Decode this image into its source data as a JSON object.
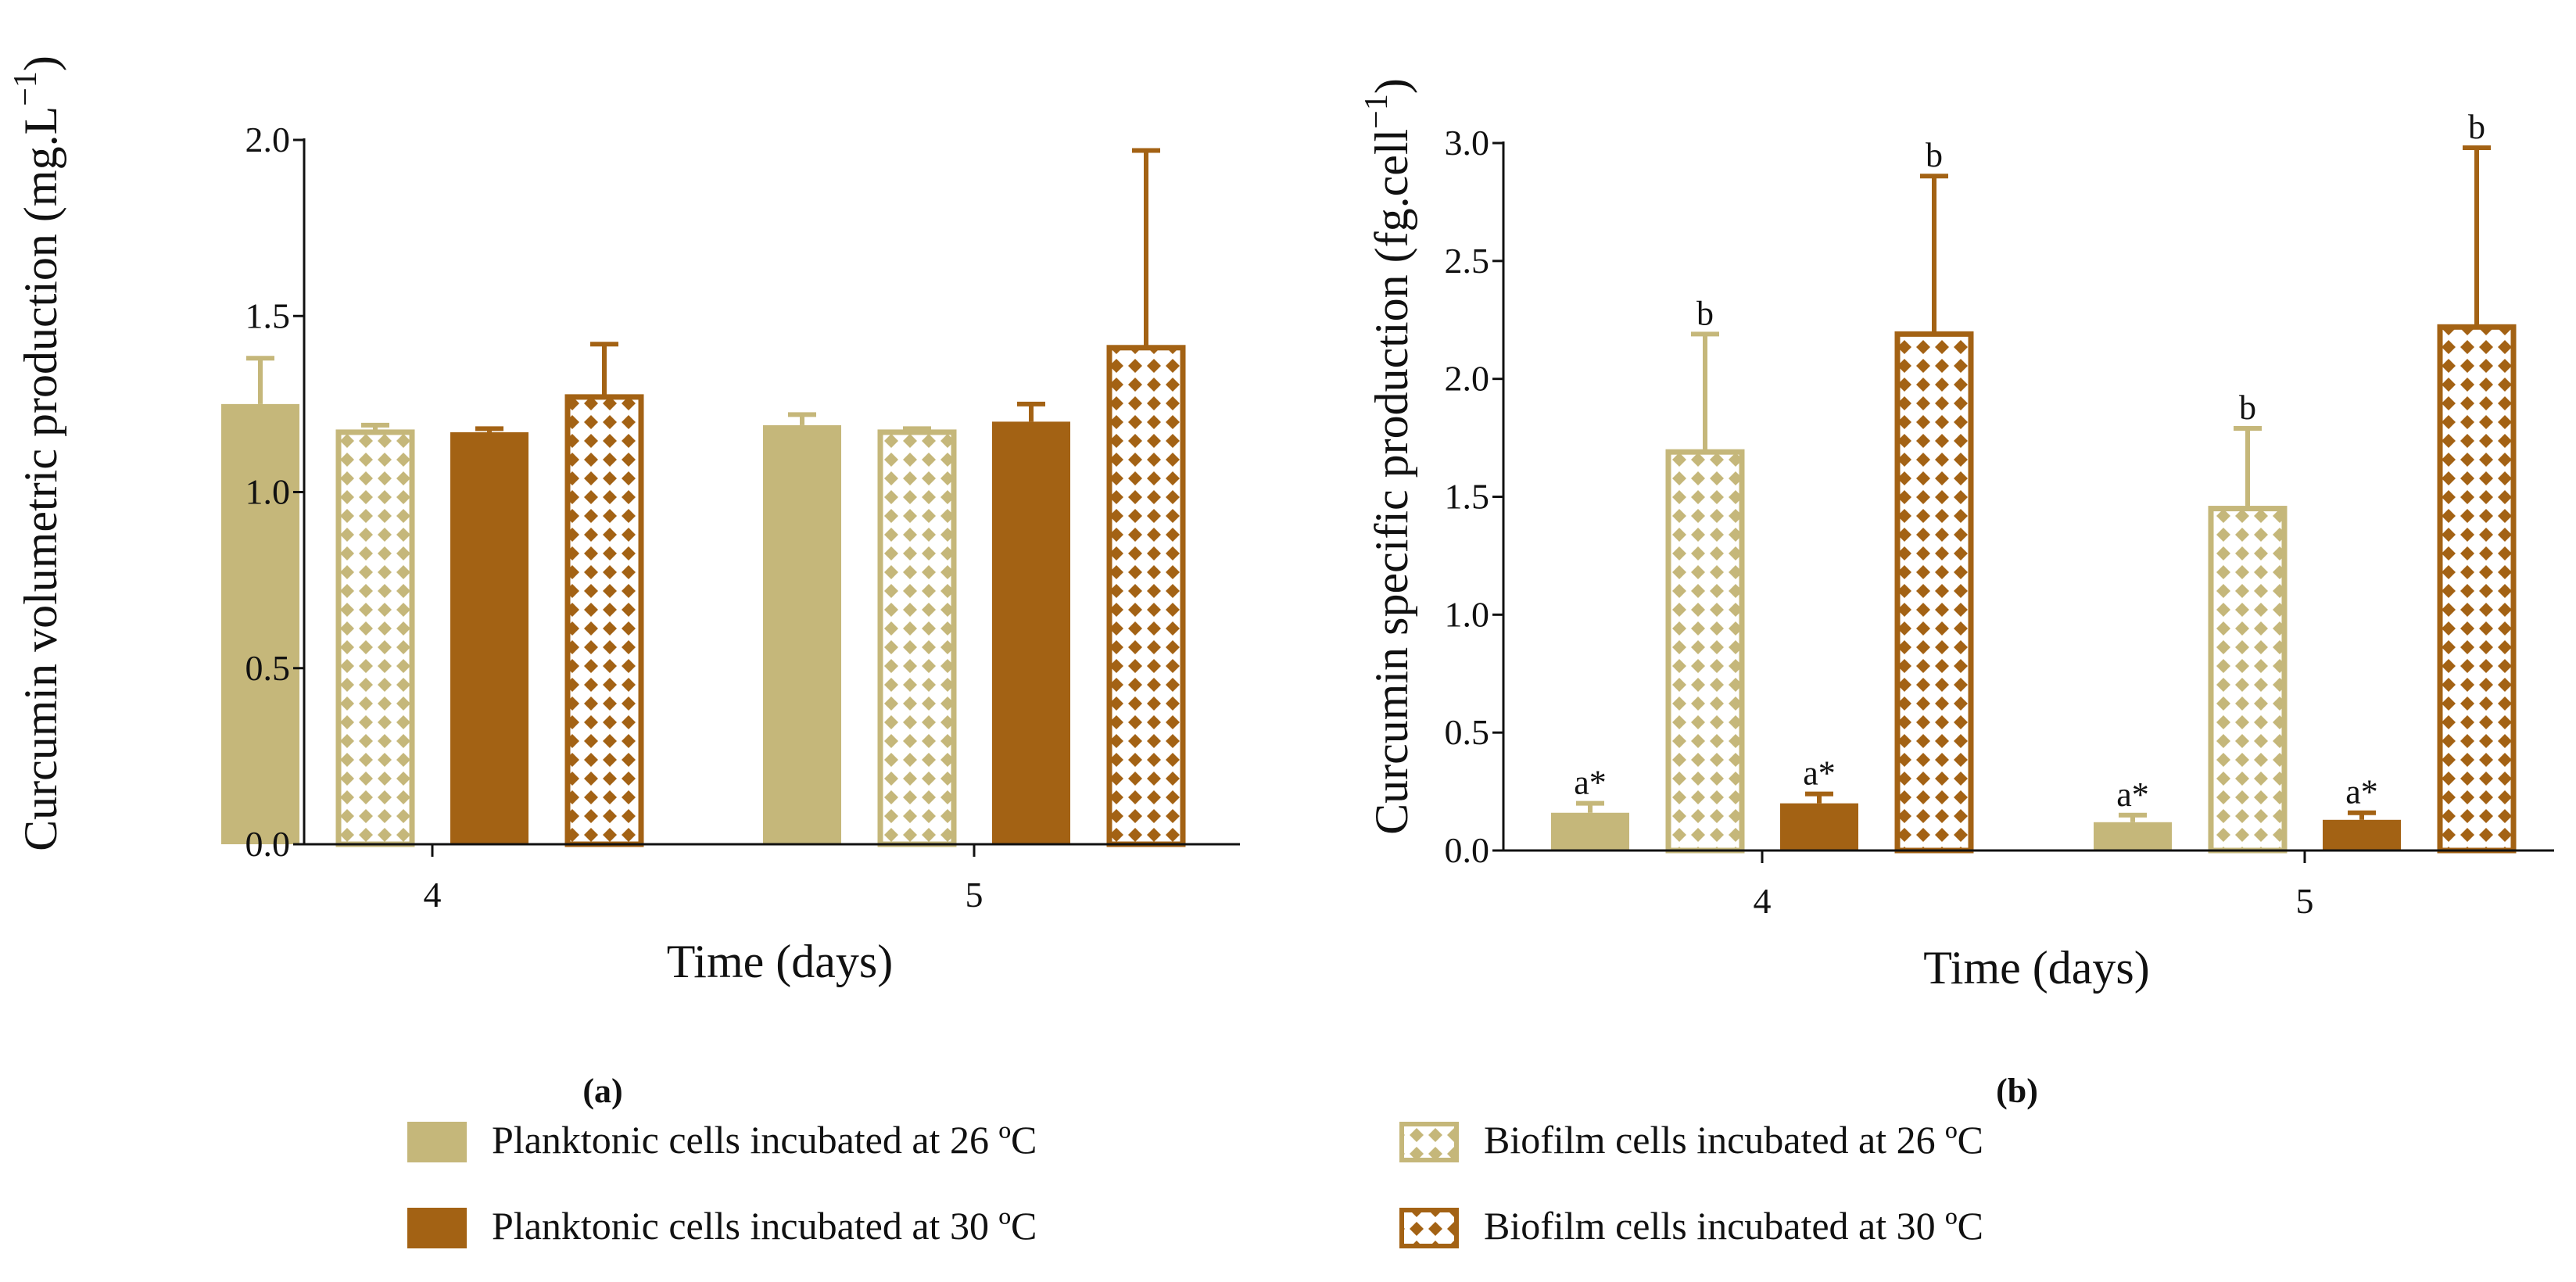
{
  "colors": {
    "light": "#C5B77A",
    "dark": "#A36214",
    "axis": "#111111"
  },
  "legend": [
    {
      "label": "Planktonic cells incubated at 26 ºC",
      "series": 0
    },
    {
      "label": "Biofilm cells incubated at 26 ºC",
      "series": 1
    },
    {
      "label": "Planktonic cells incubated at 30 ºC",
      "series": 2
    },
    {
      "label": "Biofilm cells incubated at 30 ºC",
      "series": 3
    }
  ],
  "chart_data": [
    {
      "type": "bar",
      "caption": "(a)",
      "xlabel": "Time (days)",
      "ylabel": "Curcumin volumetric production (mg.L",
      "ylabel_sup": "−1",
      "categories": [
        "4",
        "5"
      ],
      "ylim": [
        0,
        2.0
      ],
      "yticks": [
        "0.0",
        "0.5",
        "1.0",
        "1.5",
        "2.0"
      ],
      "series": [
        {
          "name": "Planktonic cells incubated at 26 ºC",
          "values": [
            1.25,
            1.19
          ],
          "errors": [
            0.13,
            0.03
          ],
          "labels": [
            "",
            ""
          ]
        },
        {
          "name": "Biofilm cells incubated at 26 ºC",
          "values": [
            1.17,
            1.17
          ],
          "errors": [
            0.02,
            0.01
          ],
          "labels": [
            "",
            ""
          ]
        },
        {
          "name": "Planktonic cells incubated at 30 ºC",
          "values": [
            1.17,
            1.2
          ],
          "errors": [
            0.01,
            0.05
          ],
          "labels": [
            "",
            ""
          ]
        },
        {
          "name": "Biofilm cells incubated at 30 ºC",
          "values": [
            1.27,
            1.41
          ],
          "errors": [
            0.15,
            0.56
          ],
          "labels": [
            "",
            ""
          ]
        }
      ]
    },
    {
      "type": "bar",
      "caption": "(b)",
      "xlabel": "Time (days)",
      "ylabel": "Curcumin specific production (fg.cell",
      "ylabel_sup": "−1",
      "categories": [
        "4",
        "5"
      ],
      "ylim": [
        0,
        3.0
      ],
      "yticks": [
        "0.0",
        "0.5",
        "1.0",
        "1.5",
        "2.0",
        "2.5",
        "3.0"
      ],
      "series": [
        {
          "name": "Planktonic cells incubated at 26 ºC",
          "values": [
            0.16,
            0.12
          ],
          "errors": [
            0.04,
            0.03
          ],
          "labels": [
            "a*",
            "a*"
          ]
        },
        {
          "name": "Biofilm cells incubated at 26 ºC",
          "values": [
            1.69,
            1.45
          ],
          "errors": [
            0.5,
            0.34
          ],
          "labels": [
            "b",
            "b"
          ]
        },
        {
          "name": "Planktonic cells incubated at 30 ºC",
          "values": [
            0.2,
            0.13
          ],
          "errors": [
            0.04,
            0.03
          ],
          "labels": [
            "a*",
            "a*"
          ]
        },
        {
          "name": "Biofilm cells incubated at 30 ºC",
          "values": [
            2.19,
            2.22
          ],
          "errors": [
            0.67,
            0.76
          ],
          "labels": [
            "b",
            "b"
          ]
        }
      ]
    }
  ]
}
